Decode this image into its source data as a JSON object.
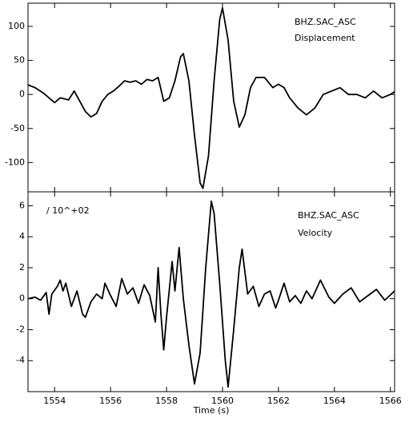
{
  "chart_data": [
    {
      "type": "line",
      "annotations": [
        "BHZ.SAC_ASC",
        "Displacement"
      ],
      "x": [
        1553.05,
        1553.3,
        1553.6,
        1553.8,
        1554.0,
        1554.2,
        1554.5,
        1554.7,
        1554.9,
        1555.1,
        1555.3,
        1555.5,
        1555.7,
        1555.9,
        1556.1,
        1556.3,
        1556.5,
        1556.7,
        1556.9,
        1557.1,
        1557.3,
        1557.5,
        1557.7,
        1557.9,
        1558.1,
        1558.3,
        1558.5,
        1558.6,
        1558.8,
        1559.0,
        1559.2,
        1559.3,
        1559.5,
        1559.7,
        1559.9,
        1560.0,
        1560.2,
        1560.4,
        1560.6,
        1560.8,
        1561.0,
        1561.2,
        1561.5,
        1561.8,
        1562.0,
        1562.2,
        1562.4,
        1562.7,
        1563.0,
        1563.3,
        1563.6,
        1563.9,
        1564.2,
        1564.5,
        1564.8,
        1565.1,
        1565.4,
        1565.7,
        1566.0,
        1566.15
      ],
      "series": [
        {
          "color": "#000000",
          "values": [
            14,
            10,
            2,
            -5,
            -12,
            -5,
            -8,
            5,
            -10,
            -25,
            -33,
            -28,
            -10,
            0,
            5,
            12,
            20,
            18,
            20,
            15,
            22,
            20,
            25,
            -10,
            -5,
            20,
            55,
            60,
            20,
            -60,
            -130,
            -138,
            -90,
            20,
            110,
            127,
            80,
            -10,
            -48,
            -30,
            10,
            25,
            25,
            10,
            15,
            10,
            -5,
            -20,
            -30,
            -20,
            0,
            5,
            10,
            0,
            0,
            -5,
            5,
            -5,
            0,
            4
          ]
        }
      ],
      "xlim": [
        1553.05,
        1566.15
      ],
      "xticks": [
        1554,
        1556,
        1558,
        1560,
        1562,
        1564,
        1566
      ],
      "ylim": [
        -143,
        134
      ],
      "yticks": [
        -100,
        -50,
        0,
        50,
        100
      ]
    },
    {
      "type": "line",
      "annotations": [
        "/ 10^+02",
        "BHZ.SAC_ASC",
        "Velocity"
      ],
      "xlabel": "Time (s)",
      "x": [
        1553.05,
        1553.3,
        1553.5,
        1553.7,
        1553.8,
        1553.9,
        1554.1,
        1554.2,
        1554.3,
        1554.4,
        1554.6,
        1554.8,
        1555.0,
        1555.1,
        1555.3,
        1555.5,
        1555.7,
        1555.8,
        1556.0,
        1556.2,
        1556.4,
        1556.6,
        1556.8,
        1557.0,
        1557.2,
        1557.4,
        1557.6,
        1557.7,
        1557.8,
        1557.9,
        1558.0,
        1558.2,
        1558.3,
        1558.45,
        1558.6,
        1558.8,
        1559.0,
        1559.2,
        1559.4,
        1559.6,
        1559.7,
        1559.9,
        1560.1,
        1560.2,
        1560.4,
        1560.6,
        1560.7,
        1560.9,
        1561.1,
        1561.3,
        1561.5,
        1561.7,
        1561.9,
        1562.0,
        1562.2,
        1562.4,
        1562.6,
        1562.8,
        1563.0,
        1563.2,
        1563.5,
        1563.8,
        1564.0,
        1564.3,
        1564.6,
        1564.9,
        1565.2,
        1565.5,
        1565.8,
        1566.15
      ],
      "series": [
        {
          "color": "#000000",
          "values": [
            0,
            0.1,
            -0.1,
            0.4,
            -1.0,
            0.3,
            0.8,
            1.2,
            0.5,
            1.0,
            -0.5,
            0.5,
            -1.0,
            -1.2,
            -0.2,
            0.3,
            0.0,
            1.0,
            0.2,
            -0.5,
            1.3,
            0.3,
            0.7,
            -0.3,
            0.9,
            0.2,
            -1.5,
            2.0,
            -1.0,
            -3.3,
            -1.2,
            2.4,
            0.5,
            3.3,
            0.0,
            -3.0,
            -5.5,
            -3.5,
            2.0,
            6.3,
            5.5,
            1.0,
            -4.0,
            -5.7,
            -2.0,
            2.0,
            3.2,
            0.3,
            0.8,
            -0.5,
            0.3,
            0.5,
            -0.6,
            -0.1,
            1.0,
            -0.2,
            0.2,
            -0.3,
            0.5,
            0.0,
            1.2,
            0.1,
            -0.3,
            0.3,
            0.7,
            -0.2,
            0.2,
            0.6,
            -0.1,
            0.5
          ]
        }
      ],
      "xlim": [
        1553.05,
        1566.15
      ],
      "xticks": [
        1554,
        1556,
        1558,
        1560,
        1562,
        1564,
        1566
      ],
      "ylim": [
        -6.0,
        6.9
      ],
      "yticks": [
        -4,
        -2,
        0,
        2,
        4,
        6
      ]
    }
  ]
}
